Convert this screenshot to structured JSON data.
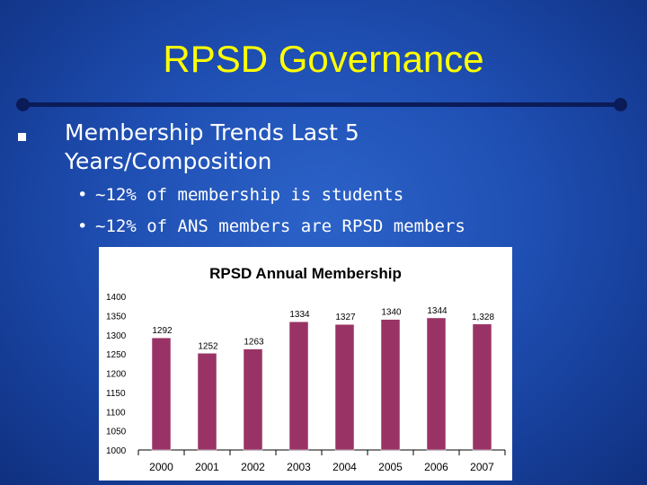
{
  "slide": {
    "title": "RPSD Governance",
    "heading": "Membership Trends Last 5 Years/Composition",
    "heading_line1": "Membership Trends Last 5",
    "heading_line2": "Years/Composition",
    "bullets": [
      "~12% of membership is students",
      "~12% of ANS members are RPSD members"
    ]
  },
  "colors": {
    "title": "#ffff00",
    "bar": "#993366",
    "text": "#ffffff"
  },
  "chart_data": {
    "type": "bar",
    "title": "RPSD Annual Membership",
    "categories": [
      "2000",
      "2001",
      "2002",
      "2003",
      "2004",
      "2005",
      "2006",
      "2007"
    ],
    "values": [
      1292,
      1252,
      1263,
      1334,
      1327,
      1340,
      1344,
      1328
    ],
    "data_labels": [
      "1292",
      "1252",
      "1263",
      "1334",
      "1327",
      "1340",
      "1344",
      "1,328"
    ],
    "y_ticks": [
      "1000",
      "1050",
      "1100",
      "1150",
      "1200",
      "1250",
      "1300",
      "1350",
      "1400"
    ],
    "ylim": [
      1000,
      1400
    ],
    "xlabel": "",
    "ylabel": "",
    "grid": false,
    "legend": "none"
  }
}
